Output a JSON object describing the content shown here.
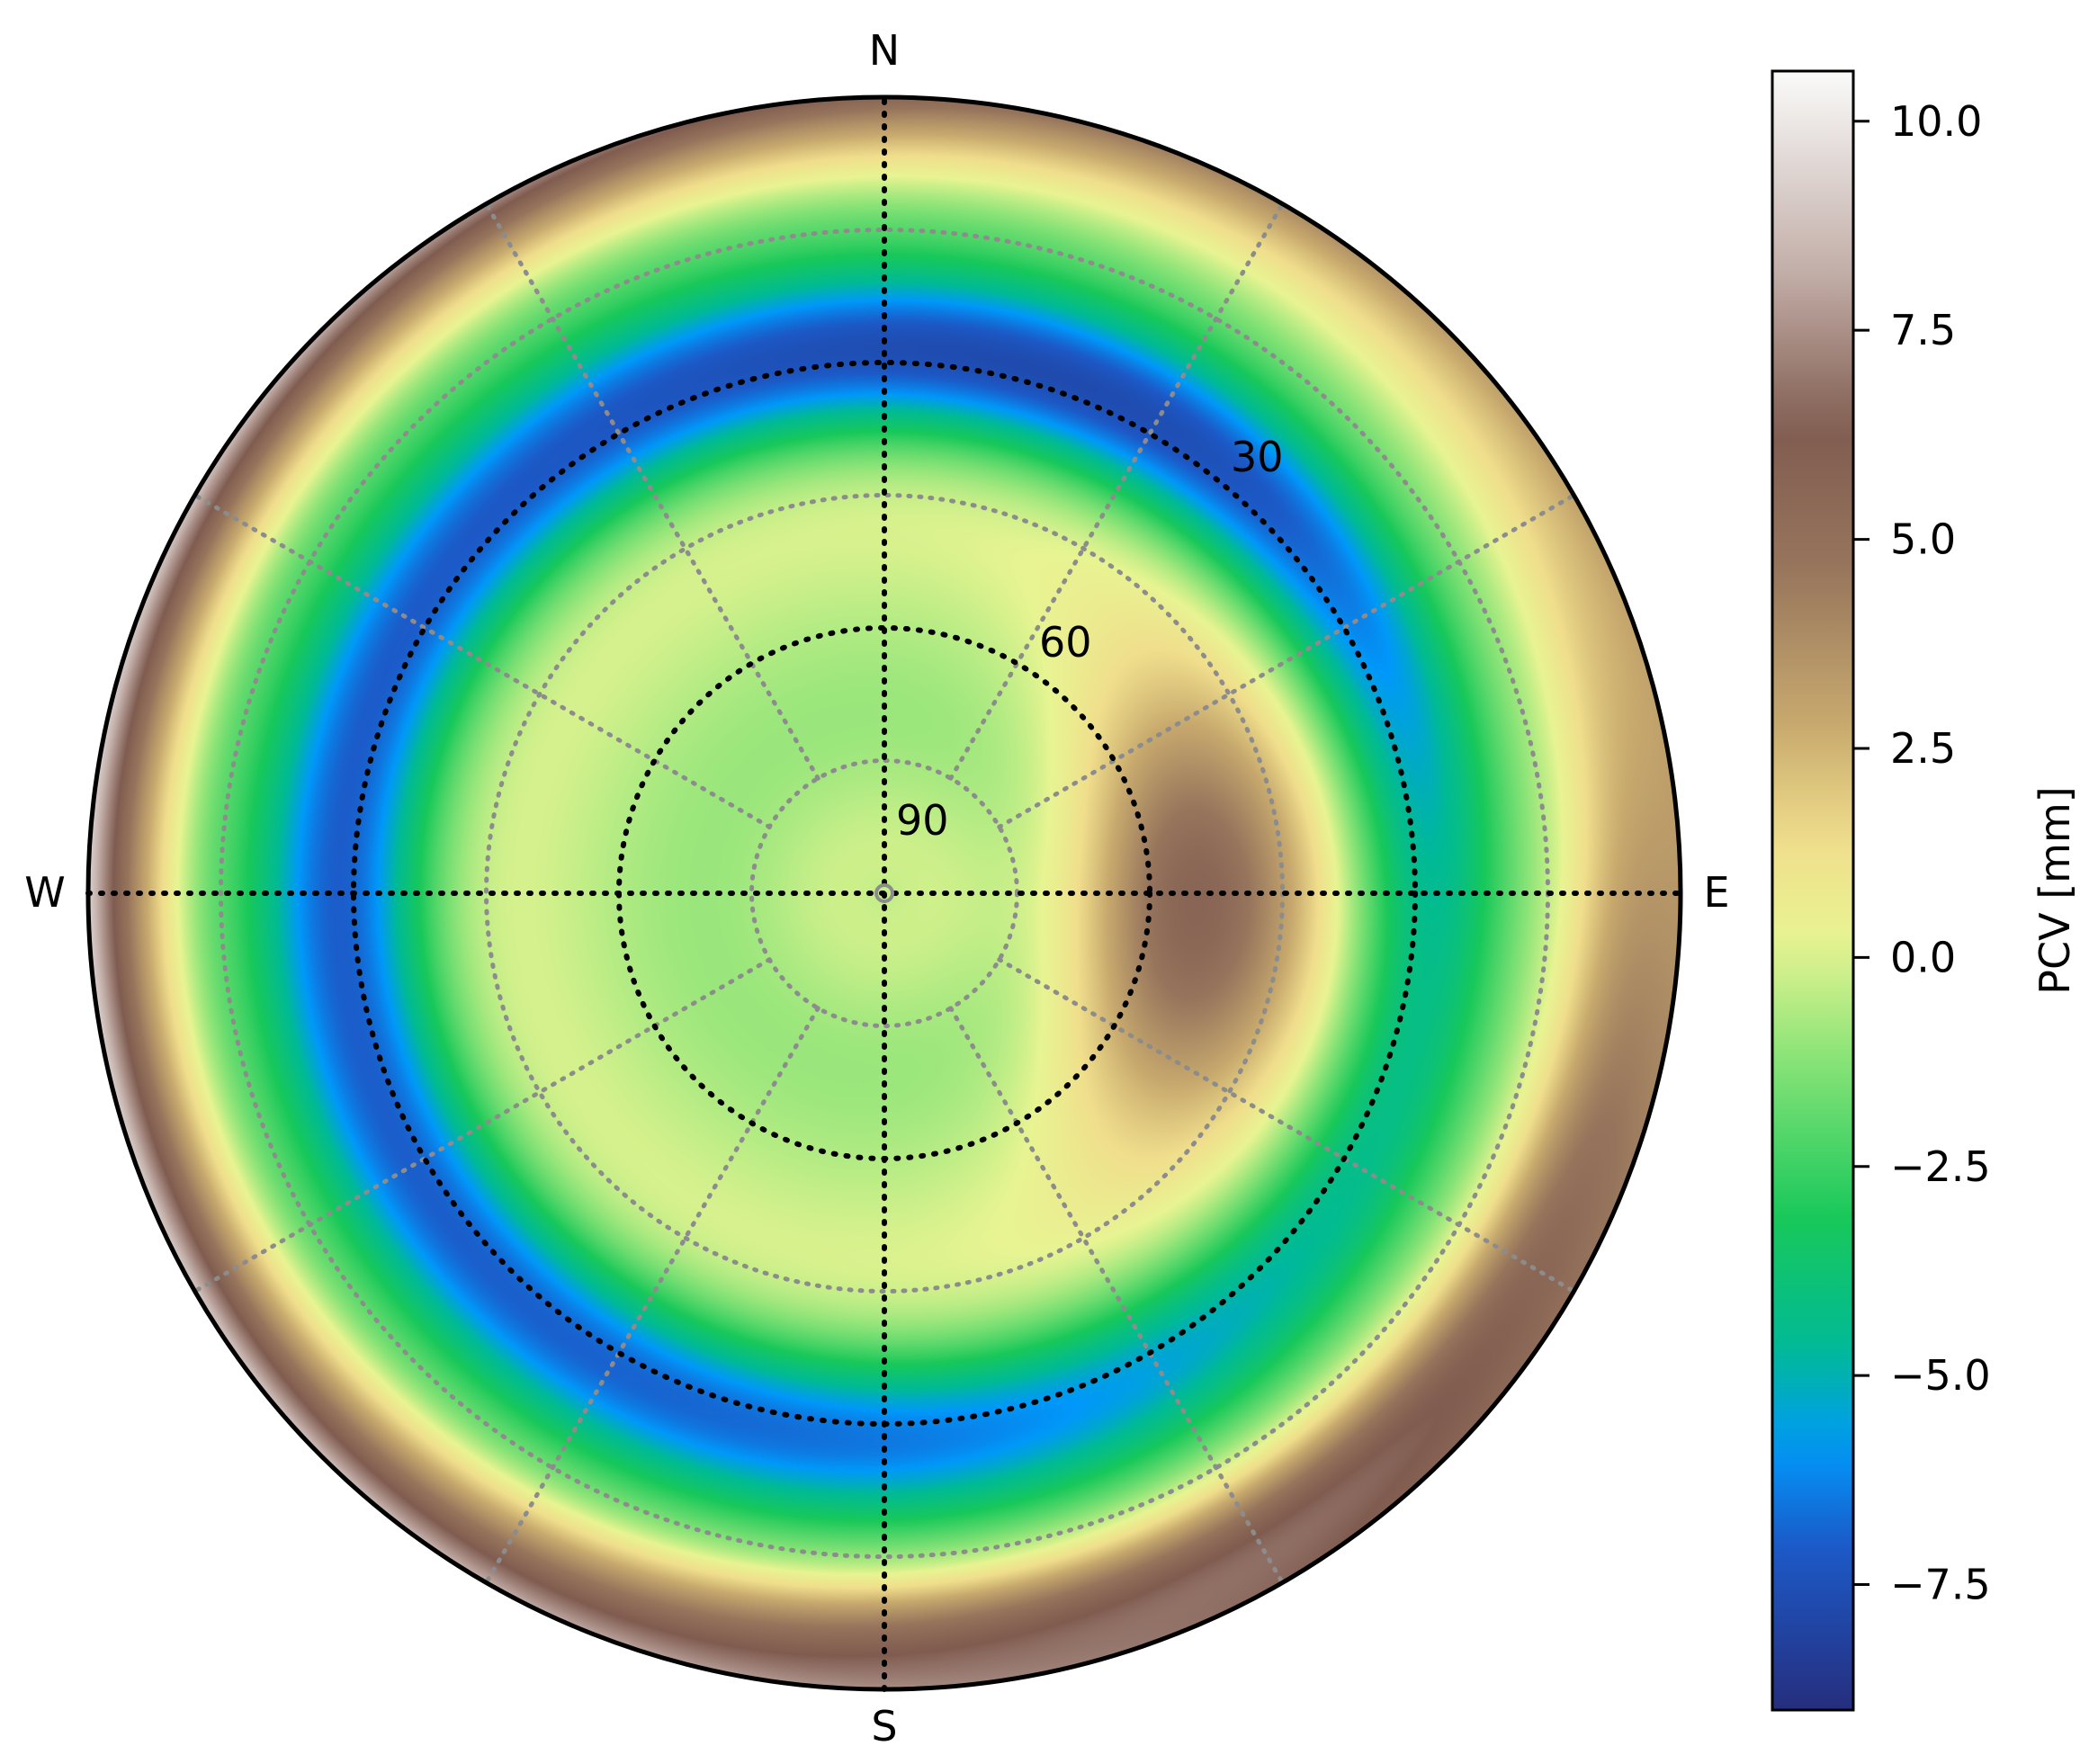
{
  "chart_data": {
    "type": "heatmap",
    "projection": "polar (skyplot)",
    "title": "",
    "cardinal_labels": {
      "north": "N",
      "east": "E",
      "south": "S",
      "west": "W"
    },
    "radial_axis": {
      "quantity": "elevation",
      "range_deg": [
        0,
        90
      ],
      "tick_labels": [
        "30",
        "60",
        "90"
      ],
      "tick_values": [
        30,
        60,
        90
      ],
      "major_circles_elevation": [
        30,
        60
      ],
      "minor_circles_elevation": [
        15,
        45,
        75
      ],
      "azimuth_grid_step_deg": 30,
      "grid": true
    },
    "colorbar": {
      "label": "PCV [mm]",
      "range": [
        -9.0,
        10.6
      ],
      "ticks": [
        10.0,
        7.5,
        5.0,
        2.5,
        0.0,
        -2.5,
        -5.0,
        -7.5
      ],
      "tick_labels": [
        "10.0",
        "7.5",
        "5.0",
        "2.5",
        "0.0",
        "−2.5",
        "−5.0",
        "−7.5"
      ],
      "colormap": "terrain",
      "placement": "right"
    },
    "samples": [
      {
        "elevation_deg": 90,
        "azimuth_deg": 0,
        "pcv_mm": -1.0
      },
      {
        "elevation_deg": 60,
        "azimuth_deg": 90,
        "pcv_mm": 2.5
      },
      {
        "elevation_deg": 30,
        "azimuth_deg": 45,
        "pcv_mm": -8.0
      },
      {
        "elevation_deg": 30,
        "azimuth_deg": 270,
        "pcv_mm": -6.5
      },
      {
        "elevation_deg": 30,
        "azimuth_deg": 180,
        "pcv_mm": -6.5
      },
      {
        "elevation_deg": 5,
        "azimuth_deg": 270,
        "pcv_mm": 10.5
      },
      {
        "elevation_deg": 5,
        "azimuth_deg": 0,
        "pcv_mm": 7.0
      },
      {
        "elevation_deg": 5,
        "azimuth_deg": 135,
        "pcv_mm": 6.0
      }
    ]
  }
}
